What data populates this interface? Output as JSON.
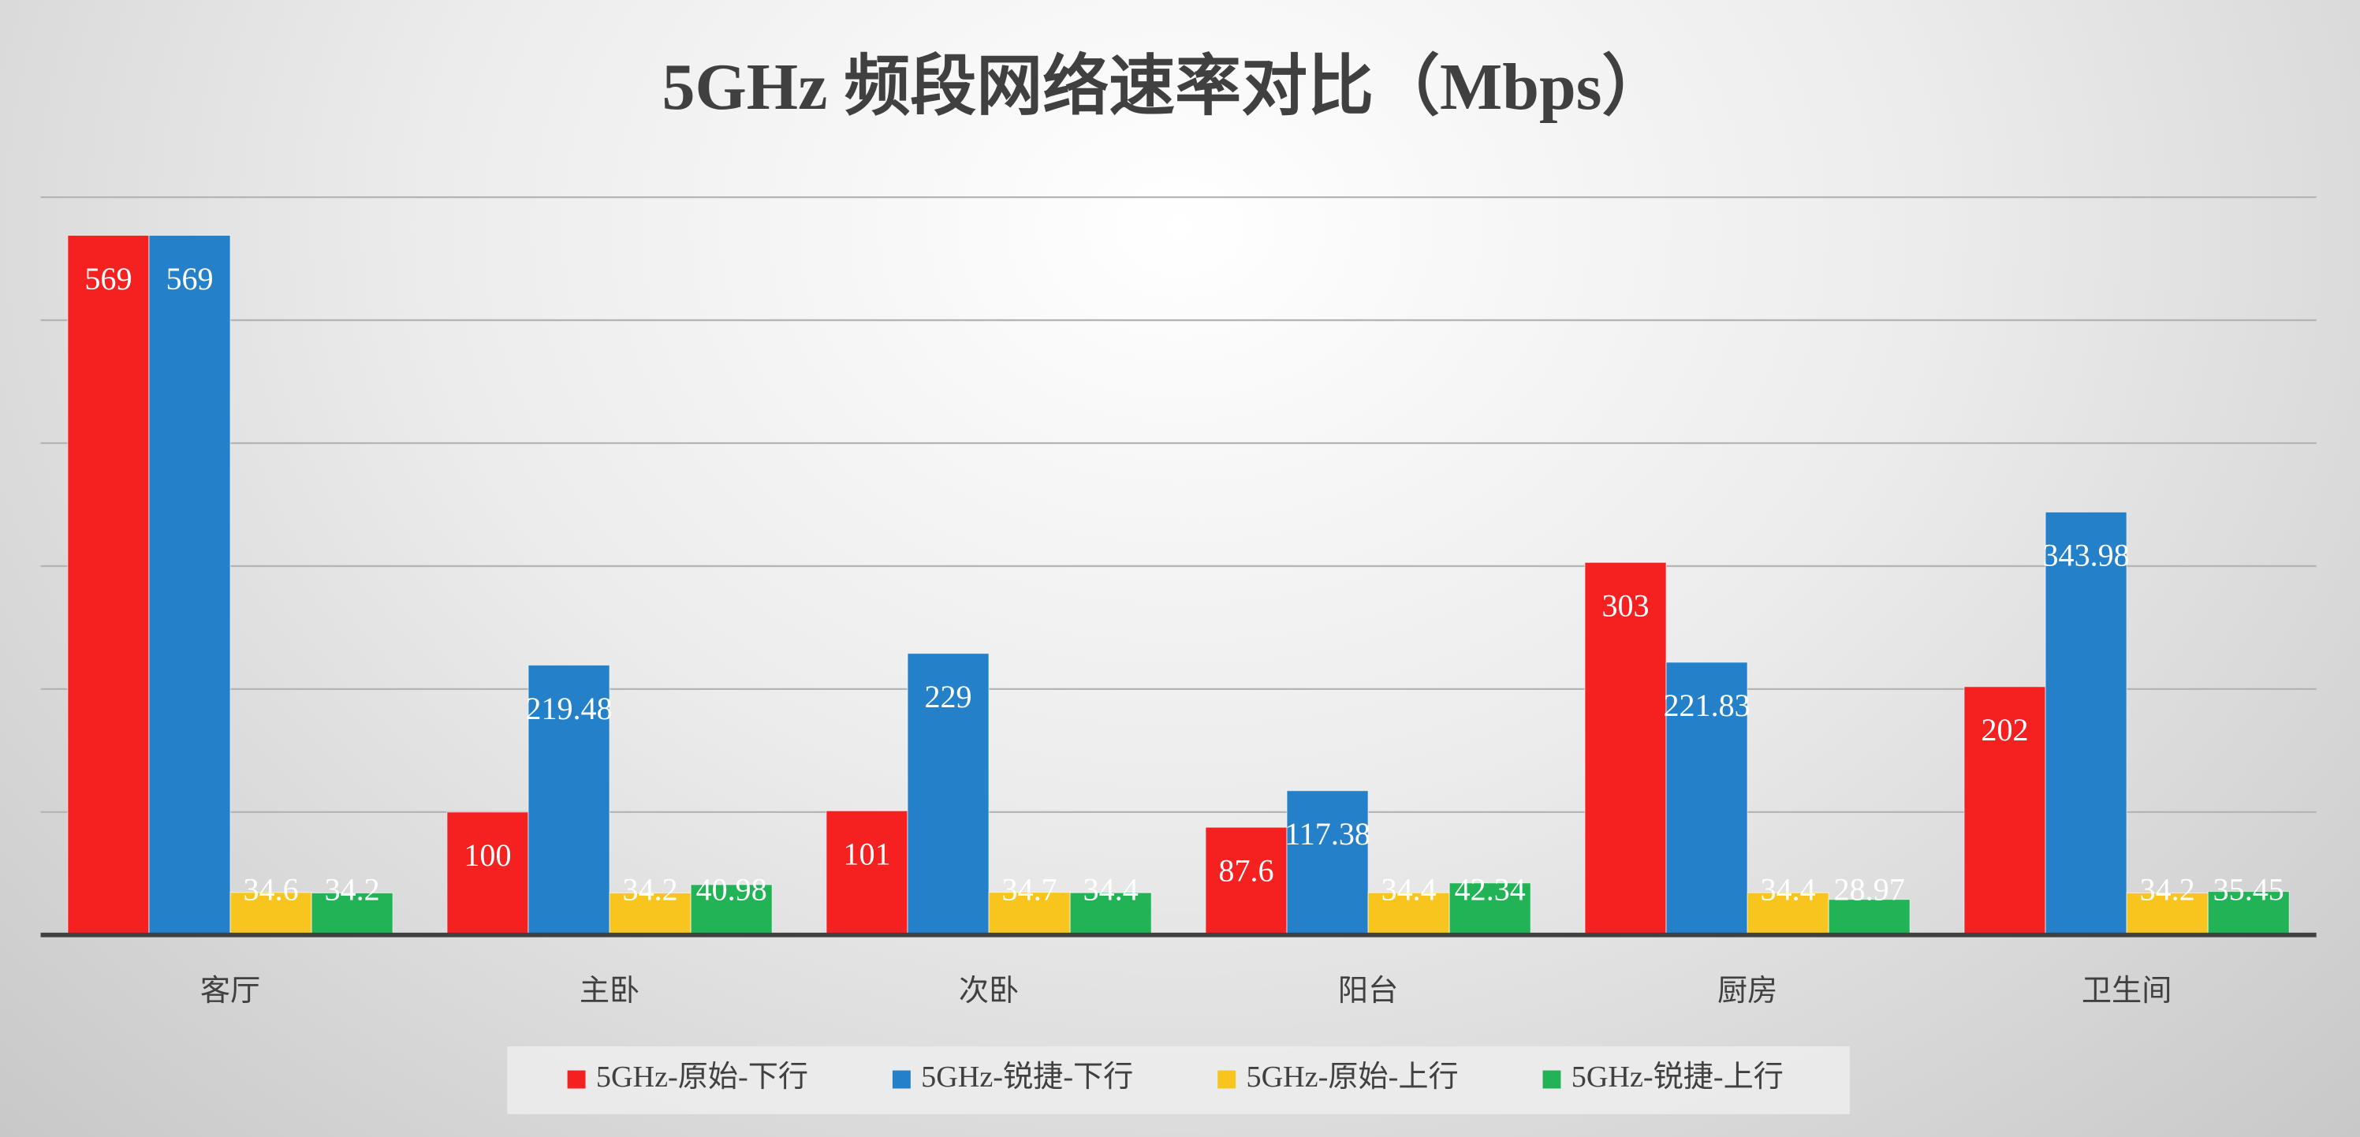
{
  "chart_data": {
    "type": "bar",
    "title": "5GHz  频段网络速率对比（Mbps）",
    "categories": [
      "客厅",
      "主卧",
      "次卧",
      "阳台",
      "厨房",
      "卫生间"
    ],
    "series": [
      {
        "name": "5GHz-原始-下行",
        "color": "#f52020",
        "values": [
          569,
          100,
          101,
          87.6,
          303,
          202
        ]
      },
      {
        "name": "5GHz-锐捷-下行",
        "color": "#2480c8",
        "values": [
          569,
          219.48,
          229,
          117.38,
          221.83,
          343.98
        ]
      },
      {
        "name": "5GHz-原始-上行",
        "color": "#f8c51f",
        "values": [
          34.6,
          34.2,
          34.7,
          34.4,
          34.4,
          34.2
        ]
      },
      {
        "name": "5GHz-锐捷-上行",
        "color": "#22b357",
        "values": [
          34.2,
          40.98,
          34.4,
          42.34,
          28.97,
          35.45
        ]
      }
    ],
    "ylim": [
      0,
      600
    ],
    "yticks": [
      0,
      100,
      200,
      300,
      400,
      500,
      600
    ],
    "grid": true,
    "legend": "bottom"
  }
}
